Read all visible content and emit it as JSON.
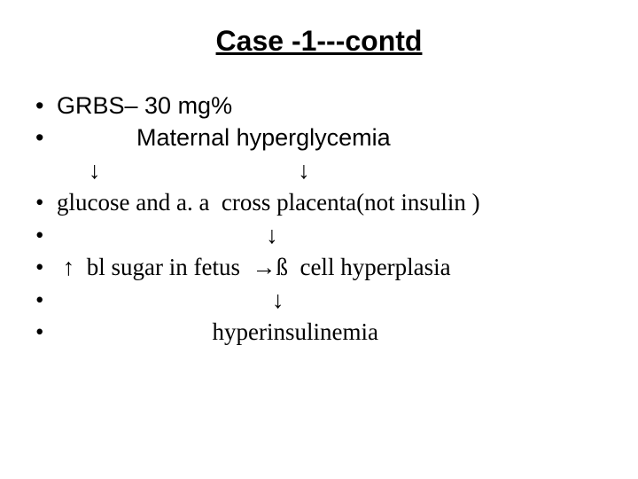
{
  "title": "Case  -1---contd",
  "bullets": {
    "b1": "GRBS– 30 mg%",
    "b2_prefix": "            ",
    "b2_text": "Maternal  hyperglycemia",
    "arrows_row": "↓                                 ↓",
    "b3": "glucose and a. a  cross placenta(not insulin )",
    "b4": "                                   ↓",
    "b5": " ↑  bl sugar in fetus  →ß  cell hyperplasia",
    "b6": "                                    ↓",
    "b7": "                          hyperinsulinemia"
  },
  "style": {
    "background_color": "#ffffff",
    "text_color": "#000000",
    "title_fontsize": 32,
    "body_fontsize": 27,
    "title_font": "Arial",
    "body_font_mixed": [
      "Arial",
      "Times New Roman"
    ]
  }
}
